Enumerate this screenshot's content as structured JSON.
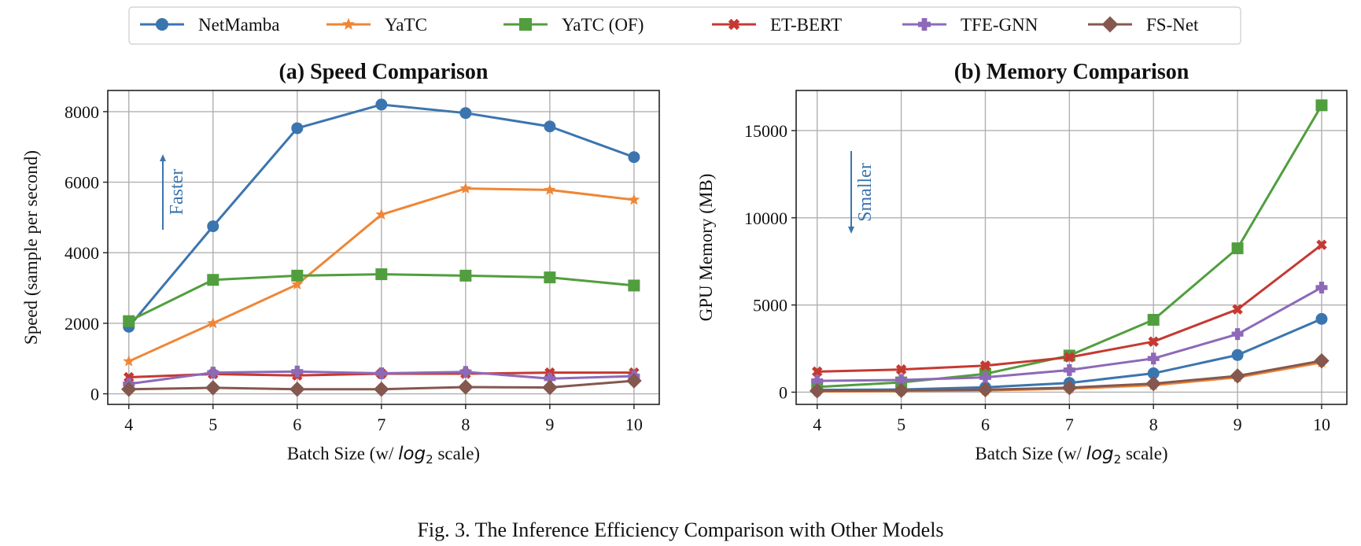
{
  "legend": [
    {
      "name": "NetMamba",
      "color": "#3b75af",
      "marker": "circle"
    },
    {
      "name": "YaTC",
      "color": "#ef8636",
      "marker": "star"
    },
    {
      "name": "YaTC (OF)",
      "color": "#519e3e",
      "marker": "square"
    },
    {
      "name": "ET-BERT",
      "color": "#c53932",
      "marker": "x"
    },
    {
      "name": "TFE-GNN",
      "color": "#8d69b8",
      "marker": "plus"
    },
    {
      "name": "FS-Net",
      "color": "#84584e",
      "marker": "diamond"
    }
  ],
  "chart_data": [
    {
      "type": "line",
      "title": "(a) Speed Comparison",
      "xlabel_prefix": "Batch Size (w/ ",
      "xlabel_math": "log",
      "xlabel_sub": "2",
      "xlabel_suffix": " scale)",
      "ylabel": "Speed (sample per second)",
      "x": [
        4,
        5,
        6,
        7,
        8,
        9,
        10
      ],
      "xlim": [
        3.75,
        10.3
      ],
      "ylim": [
        -300,
        8600
      ],
      "yticks": [
        0,
        2000,
        4000,
        6000,
        8000
      ],
      "grid": true,
      "annotation": {
        "text": "Faster",
        "direction": "up",
        "color": "#3b75af"
      },
      "series": [
        {
          "name": "NetMamba",
          "values": [
            1900,
            4750,
            7530,
            8200,
            7960,
            7580,
            6710
          ]
        },
        {
          "name": "YaTC",
          "values": [
            920,
            2000,
            3100,
            5080,
            5820,
            5780,
            5500
          ]
        },
        {
          "name": "YaTC (OF)",
          "values": [
            2060,
            3230,
            3350,
            3390,
            3350,
            3300,
            3070
          ]
        },
        {
          "name": "ET-BERT",
          "values": [
            470,
            560,
            520,
            570,
            570,
            600,
            600
          ]
        },
        {
          "name": "TFE-GNN",
          "values": [
            280,
            600,
            630,
            580,
            620,
            430,
            500
          ]
        },
        {
          "name": "FS-Net",
          "values": [
            130,
            170,
            130,
            130,
            190,
            180,
            370
          ]
        }
      ]
    },
    {
      "type": "line",
      "title": "(b) Memory Comparison",
      "xlabel_prefix": "Batch Size (w/ ",
      "xlabel_math": "log",
      "xlabel_sub": "2",
      "xlabel_suffix": " scale)",
      "ylabel": "GPU Memory (MB)",
      "x": [
        4,
        5,
        6,
        7,
        8,
        9,
        10
      ],
      "xlim": [
        3.75,
        10.3
      ],
      "ylim": [
        -700,
        17300
      ],
      "yticks": [
        0,
        5000,
        10000,
        15000
      ],
      "grid": true,
      "annotation": {
        "text": "Smaller",
        "direction": "down",
        "color": "#3b75af"
      },
      "series": [
        {
          "name": "NetMamba",
          "values": [
            130,
            150,
            280,
            530,
            1080,
            2130,
            4200
          ]
        },
        {
          "name": "YaTC",
          "values": [
            40,
            60,
            100,
            200,
            400,
            850,
            1700
          ]
        },
        {
          "name": "YaTC (OF)",
          "values": [
            300,
            560,
            1050,
            2100,
            4150,
            8250,
            16450
          ]
        },
        {
          "name": "ET-BERT",
          "values": [
            1180,
            1300,
            1520,
            2000,
            2900,
            4750,
            8450
          ]
        },
        {
          "name": "TFE-GNN",
          "values": [
            650,
            700,
            850,
            1270,
            1930,
            3330,
            6000
          ]
        },
        {
          "name": "FS-Net",
          "values": [
            80,
            100,
            140,
            260,
            490,
            930,
            1800
          ]
        }
      ]
    }
  ],
  "caption": "Fig. 3.  The Inference Efficiency Comparison with Other Models"
}
